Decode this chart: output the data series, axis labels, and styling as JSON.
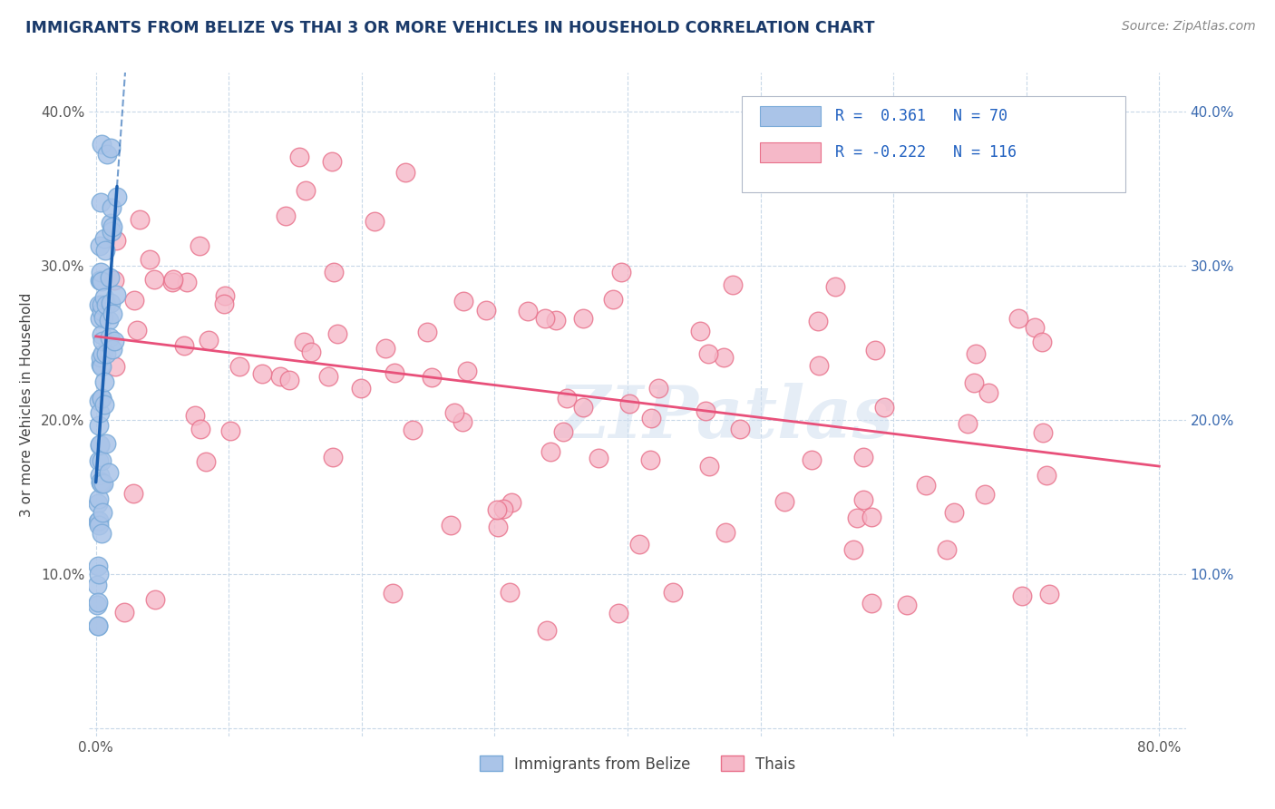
{
  "title": "IMMIGRANTS FROM BELIZE VS THAI 3 OR MORE VEHICLES IN HOUSEHOLD CORRELATION CHART",
  "source_text": "Source: ZipAtlas.com",
  "ylabel": "3 or more Vehicles in Household",
  "watermark": "ZIPatlas",
  "xlim": [
    -0.005,
    0.82
  ],
  "ylim": [
    -0.005,
    0.425
  ],
  "legend_label1": "Immigrants from Belize",
  "legend_label2": "Thais",
  "r1": 0.361,
  "n1": 70,
  "r2": -0.222,
  "n2": 116,
  "color_belize": "#aac4e8",
  "color_thai": "#f5b8c8",
  "edge_belize": "#7aaad8",
  "edge_thai": "#e8708a",
  "trendline_belize": "#1a5fb0",
  "trendline_thai": "#e8507a",
  "background_color": "#ffffff",
  "grid_color": "#c8d8e8",
  "title_color": "#1a3a6a",
  "source_color": "#888888",
  "tick_color": "#555555",
  "ylabel_color": "#444444"
}
